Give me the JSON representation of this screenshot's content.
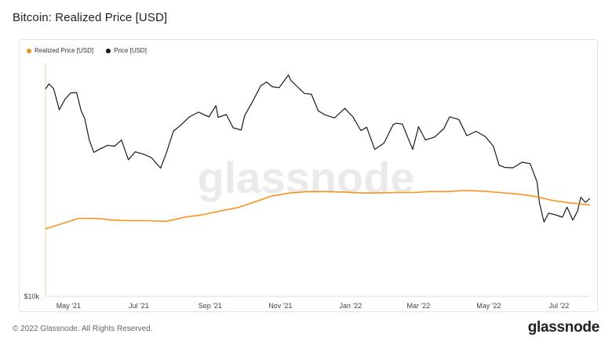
{
  "title": "Bitcoin: Realized Price [USD]",
  "footer": {
    "copyright": "© 2022 Glassnode. All Rights Reserved.",
    "brand": "glassnode"
  },
  "watermark": "glassnode",
  "colors": {
    "realized": "#f7931a",
    "price": "#1a1a1a",
    "axis": "#dddddd"
  },
  "chart_data": {
    "type": "line",
    "legend": [
      {
        "name": "Realized Price [USD]",
        "color": "#f7931a"
      },
      {
        "name": "Price [USD]",
        "color": "#1a1a1a"
      }
    ],
    "legend_position": "top-left",
    "y_scale": "log",
    "y_tick_labels": [
      "$10k"
    ],
    "y_ticks": [
      10000
    ],
    "ylim": [
      10000,
      75000
    ],
    "xlim": [
      "2021-04-11",
      "2022-07-28"
    ],
    "x_tick_labels": [
      "May '21",
      "Jul '21",
      "Sep '21",
      "Nov '21",
      "Jan '22",
      "Mar '22",
      "May '22",
      "Jul '22"
    ],
    "x_ticks": [
      "2021-05-01",
      "2021-07-01",
      "2021-09-01",
      "2021-11-01",
      "2022-01-01",
      "2022-03-01",
      "2022-05-01",
      "2022-07-01"
    ],
    "series": [
      {
        "name": "Price [USD]",
        "x": [
          "2021-04-11",
          "2021-04-14",
          "2021-04-18",
          "2021-04-23",
          "2021-04-28",
          "2021-05-03",
          "2021-05-08",
          "2021-05-12",
          "2021-05-15",
          "2021-05-19",
          "2021-05-23",
          "2021-05-28",
          "2021-06-04",
          "2021-06-10",
          "2021-06-16",
          "2021-06-22",
          "2021-06-28",
          "2021-07-05",
          "2021-07-12",
          "2021-07-20",
          "2021-07-25",
          "2021-07-31",
          "2021-08-07",
          "2021-08-14",
          "2021-08-22",
          "2021-08-31",
          "2021-09-06",
          "2021-09-08",
          "2021-09-15",
          "2021-09-21",
          "2021-09-28",
          "2021-10-01",
          "2021-10-08",
          "2021-10-15",
          "2021-10-20",
          "2021-10-25",
          "2021-10-31",
          "2021-11-08",
          "2021-11-10",
          "2021-11-16",
          "2021-11-22",
          "2021-11-28",
          "2021-12-04",
          "2021-12-10",
          "2021-12-18",
          "2021-12-27",
          "2022-01-03",
          "2022-01-10",
          "2022-01-15",
          "2022-01-22",
          "2022-01-30",
          "2022-02-07",
          "2022-02-10",
          "2022-02-15",
          "2022-02-24",
          "2022-03-01",
          "2022-03-07",
          "2022-03-15",
          "2022-03-23",
          "2022-03-28",
          "2022-04-05",
          "2022-04-12",
          "2022-04-20",
          "2022-04-28",
          "2022-05-05",
          "2022-05-10",
          "2022-05-15",
          "2022-05-22",
          "2022-05-30",
          "2022-06-06",
          "2022-06-12",
          "2022-06-14",
          "2022-06-18",
          "2022-06-22",
          "2022-06-28",
          "2022-07-04",
          "2022-07-08",
          "2022-07-13",
          "2022-07-17",
          "2022-07-20",
          "2022-07-24",
          "2022-07-28"
        ],
        "y": [
          59800,
          62500,
          60000,
          50000,
          54800,
          57800,
          58000,
          49500,
          46500,
          38500,
          34600,
          35600,
          36800,
          36500,
          38500,
          32500,
          34800,
          34100,
          33100,
          30200,
          34500,
          41500,
          44000,
          47000,
          49000,
          47000,
          51800,
          46800,
          48000,
          42800,
          42000,
          47500,
          53800,
          61500,
          63500,
          61000,
          60500,
          67500,
          64500,
          60800,
          57500,
          57200,
          49500,
          47800,
          46600,
          50600,
          47000,
          41800,
          43000,
          35500,
          37500,
          44000,
          44500,
          44200,
          35500,
          43200,
          38500,
          39500,
          42500,
          47000,
          46000,
          40000,
          41500,
          39700,
          36500,
          31000,
          30400,
          30300,
          31800,
          31400,
          26800,
          22500,
          19000,
          20500,
          20200,
          19800,
          21600,
          19300,
          20800,
          23500,
          22500,
          23300
        ]
      },
      {
        "name": "Realized Price [USD]",
        "x": [
          "2021-04-11",
          "2021-04-25",
          "2021-05-10",
          "2021-05-25",
          "2021-06-10",
          "2021-06-25",
          "2021-07-10",
          "2021-07-25",
          "2021-08-10",
          "2021-08-25",
          "2021-09-10",
          "2021-09-25",
          "2021-10-10",
          "2021-10-25",
          "2021-11-10",
          "2021-11-25",
          "2021-12-10",
          "2021-12-25",
          "2022-01-10",
          "2022-01-25",
          "2022-02-10",
          "2022-02-25",
          "2022-03-10",
          "2022-03-25",
          "2022-04-10",
          "2022-04-25",
          "2022-05-10",
          "2022-05-25",
          "2022-06-10",
          "2022-06-25",
          "2022-07-10",
          "2022-07-28"
        ],
        "y": [
          17900,
          18700,
          19600,
          19600,
          19300,
          19200,
          19200,
          19100,
          19800,
          20200,
          20900,
          21500,
          22600,
          23800,
          24400,
          24700,
          24700,
          24600,
          24400,
          24400,
          24500,
          24500,
          24700,
          24700,
          24900,
          24800,
          24500,
          24200,
          23700,
          22900,
          22400,
          22000
        ]
      }
    ]
  }
}
